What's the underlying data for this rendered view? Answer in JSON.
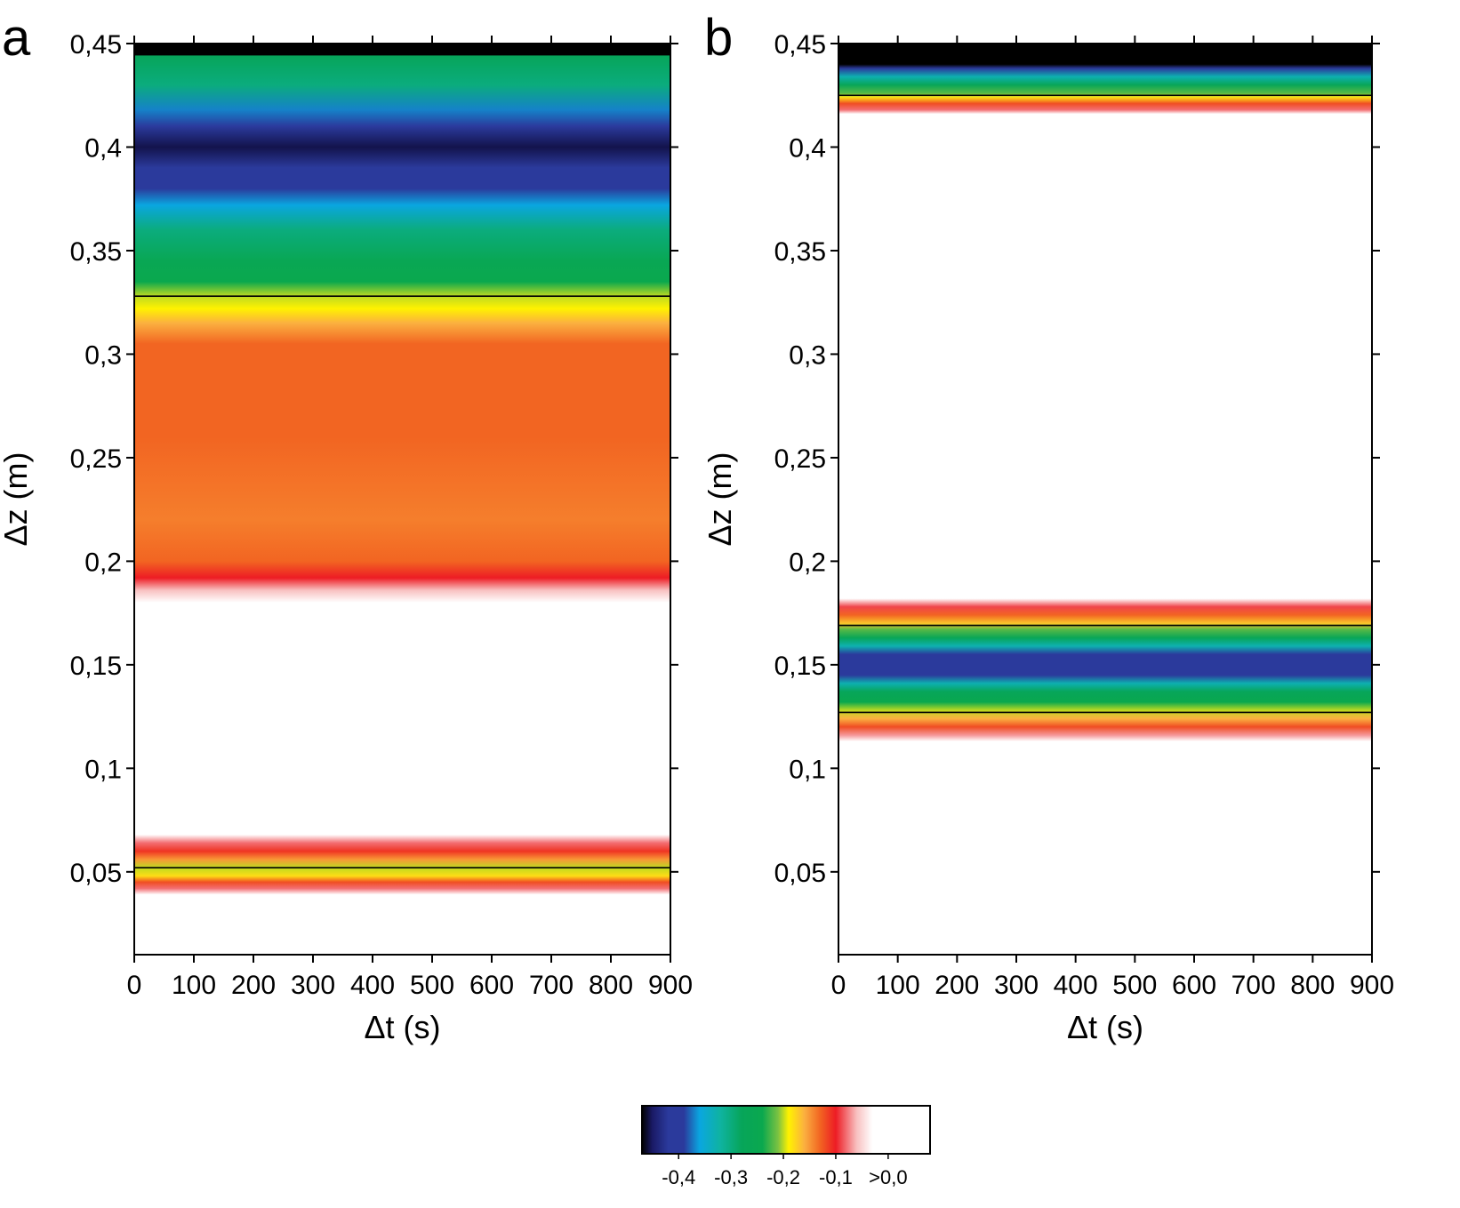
{
  "chart_data": {
    "type": "heatmap",
    "colorbar": {
      "tick_labels": [
        "-0,4",
        "-0,3",
        "-0,2",
        "-0,1",
        ">0,0"
      ],
      "tick_values": [
        -0.4,
        -0.3,
        -0.2,
        -0.1,
        0.0
      ],
      "range": [
        -0.47,
        0.08
      ],
      "color_stops": [
        {
          "v": -0.47,
          "color": "#000000"
        },
        {
          "v": -0.45,
          "color": "#1a1a66"
        },
        {
          "v": -0.42,
          "color": "#2b3a9c"
        },
        {
          "v": -0.39,
          "color": "#2b3a9c"
        },
        {
          "v": -0.36,
          "color": "#0aa6e0"
        },
        {
          "v": -0.32,
          "color": "#0fb3a0"
        },
        {
          "v": -0.28,
          "color": "#07a55a"
        },
        {
          "v": -0.24,
          "color": "#0aa84e"
        },
        {
          "v": -0.21,
          "color": "#7cc242"
        },
        {
          "v": -0.19,
          "color": "#fff200"
        },
        {
          "v": -0.16,
          "color": "#fbb040"
        },
        {
          "v": -0.13,
          "color": "#f26522"
        },
        {
          "v": -0.1,
          "color": "#ed1c24"
        },
        {
          "v": -0.06,
          "color": "#f8c0c0"
        },
        {
          "v": -0.03,
          "color": "#ffffff"
        },
        {
          "v": 0.08,
          "color": "#ffffff"
        }
      ]
    },
    "panels": [
      {
        "label": "a",
        "xlabel": "Δt (s)",
        "ylabel": "Δz (m)",
        "xlim": [
          0,
          900
        ],
        "ylim": [
          0.01,
          0.45
        ],
        "xticks": [
          0,
          100,
          200,
          300,
          400,
          500,
          600,
          700,
          800,
          900
        ],
        "xtick_labels": [
          "0",
          "100",
          "200",
          "300",
          "400",
          "500",
          "600",
          "700",
          "800",
          "900"
        ],
        "yticks": [
          0.05,
          0.1,
          0.15,
          0.2,
          0.25,
          0.3,
          0.35,
          0.4,
          0.45
        ],
        "ytick_labels": [
          "0,05",
          "0,1",
          "0,15",
          "0,2",
          "0,25",
          "0,3",
          "0,35",
          "0,4",
          "0,45"
        ],
        "profile": [
          {
            "z": 0.45,
            "v": -0.47
          },
          {
            "z": 0.4445,
            "v": -0.47
          },
          {
            "z": 0.444,
            "v": -0.28
          },
          {
            "z": 0.43,
            "v": -0.3
          },
          {
            "z": 0.418,
            "v": -0.37
          },
          {
            "z": 0.41,
            "v": -0.41
          },
          {
            "z": 0.4,
            "v": -0.455
          },
          {
            "z": 0.39,
            "v": -0.41
          },
          {
            "z": 0.38,
            "v": -0.4
          },
          {
            "z": 0.372,
            "v": -0.36
          },
          {
            "z": 0.36,
            "v": -0.3
          },
          {
            "z": 0.345,
            "v": -0.26
          },
          {
            "z": 0.335,
            "v": -0.24
          },
          {
            "z": 0.328,
            "v": -0.2
          },
          {
            "z": 0.322,
            "v": -0.19
          },
          {
            "z": 0.315,
            "v": -0.16
          },
          {
            "z": 0.305,
            "v": -0.13
          },
          {
            "z": 0.26,
            "v": -0.13
          },
          {
            "z": 0.22,
            "v": -0.14
          },
          {
            "z": 0.2,
            "v": -0.13
          },
          {
            "z": 0.192,
            "v": -0.1
          },
          {
            "z": 0.186,
            "v": -0.06
          },
          {
            "z": 0.18,
            "v": -0.02
          },
          {
            "z": 0.068,
            "v": -0.02
          },
          {
            "z": 0.064,
            "v": -0.08
          },
          {
            "z": 0.06,
            "v": -0.11
          },
          {
            "z": 0.056,
            "v": -0.15
          },
          {
            "z": 0.052,
            "v": -0.2
          },
          {
            "z": 0.048,
            "v": -0.18
          },
          {
            "z": 0.045,
            "v": -0.12
          },
          {
            "z": 0.042,
            "v": -0.08
          },
          {
            "z": 0.039,
            "v": -0.02
          },
          {
            "z": 0.01,
            "v": -0.02
          }
        ],
        "contours": [
          0.052,
          0.328
        ]
      },
      {
        "label": "b",
        "xlabel": "Δt (s)",
        "ylabel": "Δz (m)",
        "xlim": [
          0,
          900
        ],
        "ylim": [
          0.01,
          0.45
        ],
        "xticks": [
          0,
          100,
          200,
          300,
          400,
          500,
          600,
          700,
          800,
          900
        ],
        "xtick_labels": [
          "0",
          "100",
          "200",
          "300",
          "400",
          "500",
          "600",
          "700",
          "800",
          "900"
        ],
        "yticks": [
          0.05,
          0.1,
          0.15,
          0.2,
          0.25,
          0.3,
          0.35,
          0.4,
          0.45
        ],
        "ytick_labels": [
          "0,05",
          "0,1",
          "0,15",
          "0,2",
          "0,25",
          "0,3",
          "0,35",
          "0,4",
          "0,45"
        ],
        "profile": [
          {
            "z": 0.45,
            "v": -0.47
          },
          {
            "z": 0.44,
            "v": -0.47
          },
          {
            "z": 0.438,
            "v": -0.42
          },
          {
            "z": 0.434,
            "v": -0.33
          },
          {
            "z": 0.43,
            "v": -0.27
          },
          {
            "z": 0.426,
            "v": -0.22
          },
          {
            "z": 0.424,
            "v": -0.18
          },
          {
            "z": 0.421,
            "v": -0.12
          },
          {
            "z": 0.418,
            "v": -0.08
          },
          {
            "z": 0.416,
            "v": -0.02
          },
          {
            "z": 0.182,
            "v": -0.02
          },
          {
            "z": 0.178,
            "v": -0.09
          },
          {
            "z": 0.174,
            "v": -0.13
          },
          {
            "z": 0.17,
            "v": -0.17
          },
          {
            "z": 0.167,
            "v": -0.22
          },
          {
            "z": 0.163,
            "v": -0.27
          },
          {
            "z": 0.159,
            "v": -0.33
          },
          {
            "z": 0.155,
            "v": -0.4
          },
          {
            "z": 0.15,
            "v": -0.42
          },
          {
            "z": 0.145,
            "v": -0.4
          },
          {
            "z": 0.141,
            "v": -0.33
          },
          {
            "z": 0.137,
            "v": -0.28
          },
          {
            "z": 0.132,
            "v": -0.24
          },
          {
            "z": 0.128,
            "v": -0.2
          },
          {
            "z": 0.124,
            "v": -0.16
          },
          {
            "z": 0.12,
            "v": -0.12
          },
          {
            "z": 0.116,
            "v": -0.07
          },
          {
            "z": 0.113,
            "v": -0.02
          },
          {
            "z": 0.01,
            "v": -0.02
          }
        ],
        "contours": [
          0.127,
          0.169,
          0.425
        ]
      }
    ]
  }
}
